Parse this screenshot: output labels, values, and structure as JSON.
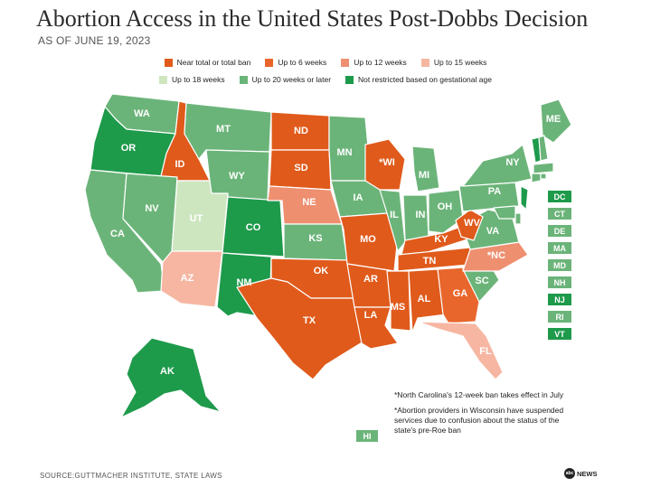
{
  "title": "Abortion Access in the United States Post-Dobbs Decision",
  "subtitle": "AS OF JUNE 19, 2023",
  "legend": [
    {
      "label": "Near total or total ban",
      "color": "#E05A1B"
    },
    {
      "label": "Up to 6 weeks",
      "color": "#E8662C"
    },
    {
      "label": "Up to 12 weeks",
      "color": "#EE8F70"
    },
    {
      "label": "Up to 15 weeks",
      "color": "#F6B6A2"
    },
    {
      "label": "Up to 18 weeks",
      "color": "#CDE6BF"
    },
    {
      "label": "Up to 20 weeks or later",
      "color": "#6BB479"
    },
    {
      "label": "Not restricted based on gestational age",
      "color": "#1E9A4B"
    }
  ],
  "colors": {
    "ban": "#E05A1B",
    "six": "#E8662C",
    "twelve": "#EE8F70",
    "fifteen": "#F6B6A2",
    "eighteen": "#CDE6BF",
    "twenty": "#6BB479",
    "none": "#1E9A4B"
  },
  "states": [
    {
      "id": "WA",
      "label": "WA",
      "cat": "twenty"
    },
    {
      "id": "OR",
      "label": "OR",
      "cat": "none"
    },
    {
      "id": "CA",
      "label": "CA",
      "cat": "twenty"
    },
    {
      "id": "ID",
      "label": "ID",
      "cat": "ban"
    },
    {
      "id": "NV",
      "label": "NV",
      "cat": "twenty"
    },
    {
      "id": "UT",
      "label": "UT",
      "cat": "eighteen"
    },
    {
      "id": "AZ",
      "label": "AZ",
      "cat": "fifteen"
    },
    {
      "id": "MT",
      "label": "MT",
      "cat": "twenty"
    },
    {
      "id": "WY",
      "label": "WY",
      "cat": "twenty"
    },
    {
      "id": "CO",
      "label": "CO",
      "cat": "none"
    },
    {
      "id": "NM",
      "label": "NM",
      "cat": "none"
    },
    {
      "id": "ND",
      "label": "ND",
      "cat": "ban"
    },
    {
      "id": "SD",
      "label": "SD",
      "cat": "ban"
    },
    {
      "id": "NE",
      "label": "NE",
      "cat": "twelve"
    },
    {
      "id": "KS",
      "label": "KS",
      "cat": "twenty"
    },
    {
      "id": "OK",
      "label": "OK",
      "cat": "ban"
    },
    {
      "id": "TX",
      "label": "TX",
      "cat": "ban"
    },
    {
      "id": "MN",
      "label": "MN",
      "cat": "twenty"
    },
    {
      "id": "IA",
      "label": "IA",
      "cat": "twenty"
    },
    {
      "id": "MO",
      "label": "MO",
      "cat": "ban"
    },
    {
      "id": "AR",
      "label": "AR",
      "cat": "ban"
    },
    {
      "id": "LA",
      "label": "LA",
      "cat": "ban"
    },
    {
      "id": "WI",
      "label": "*WI",
      "cat": "ban"
    },
    {
      "id": "IL",
      "label": "IL",
      "cat": "twenty"
    },
    {
      "id": "MI",
      "label": "MI",
      "cat": "twenty"
    },
    {
      "id": "IN",
      "label": "IN",
      "cat": "twenty"
    },
    {
      "id": "OH",
      "label": "OH",
      "cat": "twenty"
    },
    {
      "id": "KY",
      "label": "KY",
      "cat": "ban"
    },
    {
      "id": "TN",
      "label": "TN",
      "cat": "ban"
    },
    {
      "id": "MS",
      "label": "MS",
      "cat": "ban"
    },
    {
      "id": "AL",
      "label": "AL",
      "cat": "ban"
    },
    {
      "id": "GA",
      "label": "GA",
      "cat": "six"
    },
    {
      "id": "FL",
      "label": "FL",
      "cat": "fifteen"
    },
    {
      "id": "SC",
      "label": "SC",
      "cat": "twenty"
    },
    {
      "id": "NC",
      "label": "*NC",
      "cat": "twelve"
    },
    {
      "id": "VA",
      "label": "VA",
      "cat": "twenty"
    },
    {
      "id": "WV",
      "label": "WV",
      "cat": "ban"
    },
    {
      "id": "PA",
      "label": "PA",
      "cat": "twenty"
    },
    {
      "id": "NY",
      "label": "NY",
      "cat": "twenty"
    },
    {
      "id": "ME",
      "label": "ME",
      "cat": "twenty"
    },
    {
      "id": "AK",
      "label": "AK",
      "cat": "none"
    },
    {
      "id": "NJ",
      "label": "",
      "cat": "none"
    },
    {
      "id": "VT",
      "label": "",
      "cat": "none"
    },
    {
      "id": "NH",
      "label": "",
      "cat": "twenty"
    },
    {
      "id": "MA",
      "label": "",
      "cat": "twenty"
    },
    {
      "id": "CT",
      "label": "",
      "cat": "twenty"
    },
    {
      "id": "RI",
      "label": "",
      "cat": "twenty"
    },
    {
      "id": "DE",
      "label": "",
      "cat": "twenty"
    },
    {
      "id": "MD",
      "label": "",
      "cat": "twenty"
    }
  ],
  "small_states": [
    {
      "label": "DC",
      "cat": "none"
    },
    {
      "label": "CT",
      "cat": "twenty"
    },
    {
      "label": "DE",
      "cat": "twenty"
    },
    {
      "label": "MA",
      "cat": "twenty"
    },
    {
      "label": "MD",
      "cat": "twenty"
    },
    {
      "label": "NH",
      "cat": "twenty"
    },
    {
      "label": "NJ",
      "cat": "none"
    },
    {
      "label": "RI",
      "cat": "twenty"
    },
    {
      "label": "VT",
      "cat": "none"
    }
  ],
  "hawaii": {
    "label": "HI",
    "cat": "twenty"
  },
  "notes": [
    "*North Carolina's 12-week ban takes effect in July",
    "*Abortion providers in Wisconsin have suspended services due to confusion about the status of the state's pre-Roe ban"
  ],
  "source": "SOURCE:GUTTMACHER INSTITUTE, STATE LAWS",
  "logo": "NEWS"
}
